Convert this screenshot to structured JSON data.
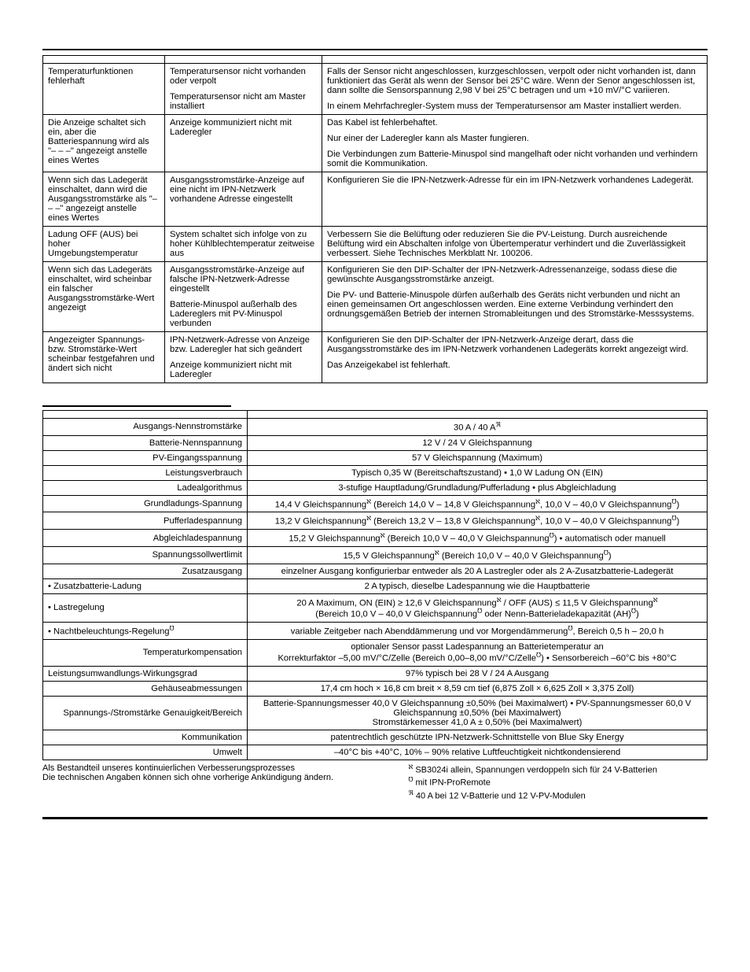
{
  "troubleshoot": {
    "rows": [
      {
        "symptom": "Temperaturfunktionen fehlerhaft",
        "subrows": [
          {
            "cause": "Temperatursensor nicht vorhanden oder verpolt",
            "solution": "Falls der Sensor nicht angeschlossen, kurzgeschlossen, verpolt oder nicht vorhanden ist, dann funktioniert das Gerät als wenn der Sensor bei 25°C wäre. Wenn der Senor angeschlossen ist, dann sollte die Sensorspannung 2,98 V bei 25°C betragen und um +10 mV/°C variieren."
          },
          {
            "cause": "Temperatursensor nicht am Master installiert",
            "solution": "In einem Mehrfachregler-System muss der Temperatursensor am Master installiert werden."
          }
        ]
      },
      {
        "symptom": "Die Anzeige schaltet sich ein, aber die Batteriespannung wird als \"– – –\" angezeigt anstelle eines Wertes",
        "subrows": [
          {
            "cause": "Anzeige kommuniziert nicht mit Laderegler",
            "solution": "Das Kabel ist fehlerbehaftet.\n\nNur einer der Laderegler kann als Master fungieren.\n\nDie Verbindungen zum Batterie-Minuspol sind mangelhaft oder nicht vorhanden und verhindern somit die Kommunikation."
          }
        ]
      },
      {
        "symptom": "Wenn sich das Ladegerät einschaltet, dann wird die Ausgangsstromstärke als \"– – –\" angezeigt anstelle eines Wertes",
        "subrows": [
          {
            "cause": "Ausgangsstromstärke-Anzeige auf eine nicht im IPN-Netzwerk vorhandene Adresse eingestellt",
            "solution": "Konfigurieren Sie die IPN-Netzwerk-Adresse für ein im IPN-Netzwerk vorhandenes Ladegerät."
          }
        ]
      },
      {
        "symptom": "Ladung OFF (AUS) bei hoher Umgebungstemperatur",
        "subrows": [
          {
            "cause": "System schaltet sich infolge von zu hoher Kühlblechtemperatur zeitweise aus",
            "solution": "Verbessern Sie die Belüftung oder reduzieren Sie die PV-Leistung. Durch ausreichende Belüftung wird ein Abschalten infolge von Übertemperatur verhindert und die Zuverlässigkeit verbessert. Siehe Technisches Merkblatt Nr. 100206."
          }
        ]
      },
      {
        "symptom": "Wenn sich das Ladegeräts einschaltet, wird scheinbar ein falscher Ausgangsstromstärke-Wert angezeigt",
        "subrows": [
          {
            "cause": "Ausgangsstromstärke-Anzeige auf falsche IPN-Netzwerk-Adresse eingestellt",
            "solution": "Konfigurieren Sie den DIP-Schalter der IPN-Netzwerk-Adressenanzeige, sodass diese die gewünschte Ausgangsstromstärke anzeigt."
          },
          {
            "cause": "Batterie-Minuspol außerhalb des Ladereglers mit PV-Minuspol verbunden",
            "solution": "Die PV- und Batterie-Minuspole dürfen außerhalb des Geräts nicht verbunden und nicht an einen gemeinsamen Ort angeschlossen werden. Eine externe Verbindung verhindert den ordnungsgemäßen Betrieb der internen Stromableitungen und des Stromstärke-Messsystems."
          }
        ]
      },
      {
        "symptom": "Angezeigter Spannungs- bzw. Stromstärke-Wert scheinbar festgefahren und ändert sich nicht",
        "subrows": [
          {
            "cause": "IPN-Netzwerk-Adresse von Anzeige bzw. Laderegler hat sich geändert",
            "solution": "Konfigurieren Sie den DIP-Schalter der IPN-Netzwerk-Anzeige derart, dass die Ausgangsstromstärke des im IPN-Netzwerk vorhandenen Ladegeräts korrekt angezeigt wird."
          },
          {
            "cause": "Anzeige kommuniziert nicht mit Laderegler",
            "solution": "Das Anzeigekabel ist fehlerhaft."
          }
        ]
      }
    ]
  },
  "specs": {
    "rows": [
      {
        "label": "Ausgangs-Nennstromstärke",
        "value": "30 A / 40 A",
        "sup": "ℜ"
      },
      {
        "label": "Batterie-Nennspannung",
        "value": "12 V / 24 V Gleichspannung"
      },
      {
        "label": "PV-Eingangsspannung",
        "value": "57 V Gleichspannung (Maximum)"
      },
      {
        "label": "Leistungsverbrauch",
        "value": "Typisch 0,35 W (Bereitschaftszustand) • 1,0 W Ladung ON (EIN)"
      },
      {
        "label": "Ladealgorithmus",
        "value": "3-stufige Hauptladung/Grundladung/Pufferladung • plus Abgleichladung"
      },
      {
        "label": "Grundladungs-Spannung",
        "value_html": "14,4 V Gleichspannung<sup>ℵ</sup> (Bereich 14,0 V – 14,8 V Gleichspannung<sup>ℵ</sup>, 10,0 V – 40,0 V Gleichspannung<sup>℧</sup>)"
      },
      {
        "label": "Pufferladespannung",
        "value_html": "13,2 V Gleichspannung<sup>ℵ</sup> (Bereich 13,2 V – 13,8 V Gleichspannung<sup>ℵ</sup>, 10,0 V – 40,0 V Gleichspannung<sup>℧</sup>)"
      },
      {
        "label": "Abgleichladespannung",
        "value_html": "15,2 V Gleichspannung<sup>ℵ</sup> (Bereich 10,0 V – 40,0 V Gleichspannung<sup>℧</sup>) • automatisch oder manuell"
      },
      {
        "label": "Spannungssollwertlimit",
        "value_html": "15,5 V Gleichspannung<sup>ℵ</sup> (Bereich 10,0 V – 40,0 V Gleichspannung<sup>℧</sup>)"
      },
      {
        "label": "Zusatzausgang",
        "value": "einzelner Ausgang konfigurierbar entweder als 20 A Lastregler oder als 2 A-Zusatzbatterie-Ladegerät"
      },
      {
        "label": "• Zusatzbatterie-Ladung",
        "align": "left",
        "value": "2 A typisch, dieselbe Ladespannung wie die Hauptbatterie"
      },
      {
        "label": "• Lastregelung",
        "align": "left",
        "value_html": "20 A Maximum, ON (EIN) ≥ 12,6 V Gleichspannung<sup>ℵ</sup> / OFF (AUS) ≤ 11,5 V Gleichspannung<sup>ℵ</sup><br>(Bereich 10,0 V – 40,0 V Gleichspannung<sup>℧</sup> oder Nenn-Batterieladekapazität (AH)<sup>℧</sup>)"
      },
      {
        "label_html": "• Nachtbeleuchtungs-Regelung<sup>℧</sup>",
        "align": "left",
        "value_html": "variable Zeitgeber nach Abenddämmerung und vor Morgendämmerung<sup>℧</sup>, Bereich 0,5 h – 20,0 h"
      },
      {
        "label": "Temperaturkompensation",
        "value_html": "optionaler Sensor passt Ladespannung an Batterietemperatur an<br>Korrekturfaktor –5,00 mV/°C/Zelle (Bereich 0,00–8,00 mV/°C/Zelle<sup>℧</sup>) • Sensorbereich –60°C bis +80°C"
      },
      {
        "label": "Leistungsumwandlungs-Wirkungsgrad",
        "align": "left",
        "value": "97% typisch bei 28 V / 24 A Ausgang"
      },
      {
        "label": "Gehäuseabmessungen",
        "value": "17,4 cm hoch × 16,8 cm breit × 8,59 cm tief (6,875 Zoll × 6,625 Zoll × 3,375 Zoll)"
      },
      {
        "label": "Spannungs-/Stromstärke Genauigkeit/Bereich",
        "value": "Batterie-Spannungsmesser 40,0 V Gleichspannung ±0,50% (bei Maximalwert) • PV-Spannungsmesser 60,0 V Gleichspannung ±0,50% (bei Maximalwert)\nStromstärkemesser 41,0 A ± 0,50% (bei Maximalwert)"
      },
      {
        "label": "Kommunikation",
        "value": "patentrechtlich geschützte IPN-Netzwerk-Schnittstelle von Blue Sky Energy"
      },
      {
        "label": "Umwelt",
        "value": "–40°C bis +40°C, 10% – 90% relative Luftfeuchtigkeit nichtkondensierend"
      }
    ]
  },
  "footer": {
    "left1": "Als Bestandteil unseres kontinuierlichen Verbesserungsprozesses",
    "left2": "Die technischen Angaben können sich ohne vorherige Ankündigung ändern.",
    "right1": "ℵ SB3024i allein, Spannungen verdoppeln sich für 24 V-Batterien",
    "right2": "℧ mit IPN-ProRemote",
    "right3": "ℜ 40 A bei 12 V-Batterie und 12 V-PV-Modulen"
  }
}
